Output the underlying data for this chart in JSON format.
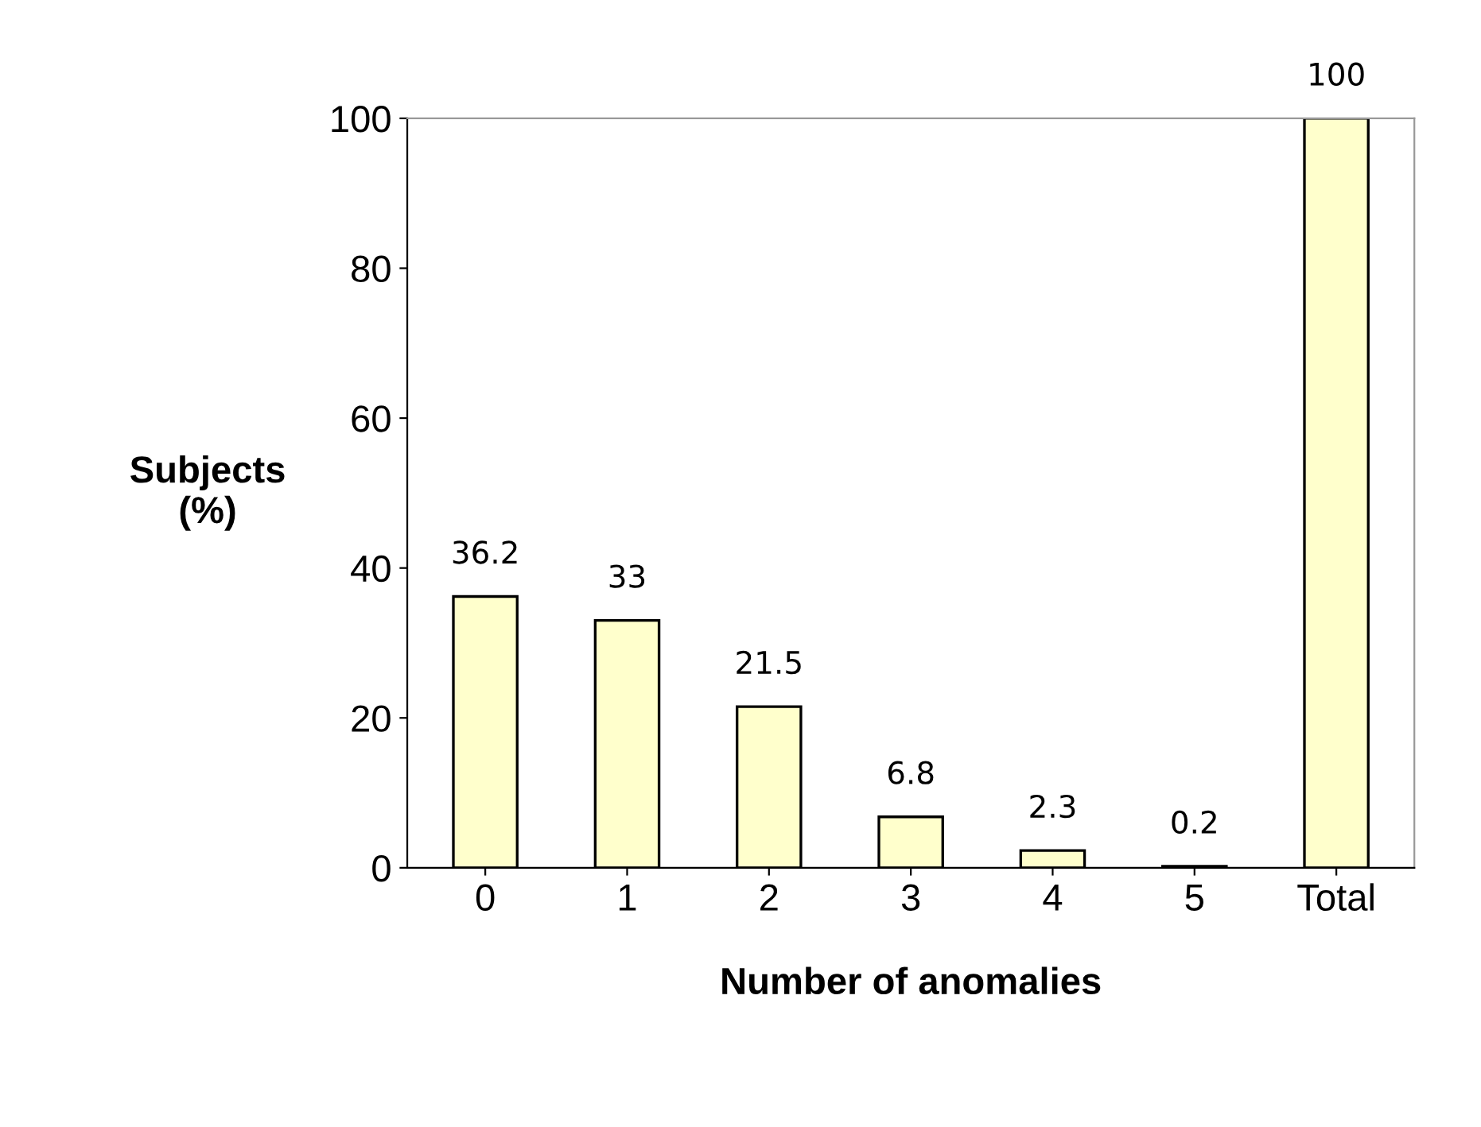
{
  "chart_data": {
    "type": "bar",
    "xlabel": "Number of anomalies",
    "ylabel": "Subjects\n(%)",
    "categories": [
      "0",
      "1",
      "2",
      "3",
      "4",
      "5",
      "Total"
    ],
    "values": [
      36.2,
      33,
      21.5,
      6.8,
      2.3,
      0.2,
      100
    ],
    "color": "#ffffcc",
    "ylim": [
      0,
      100
    ],
    "yticks": [
      0,
      20,
      40,
      60,
      80,
      100
    ],
    "data_labels": true,
    "grid": false,
    "legend": false
  }
}
